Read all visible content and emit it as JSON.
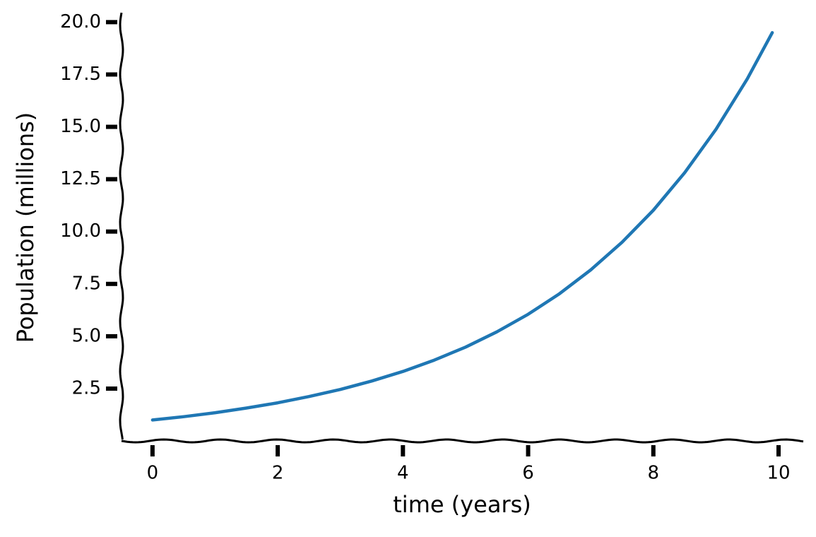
{
  "chart_data": {
    "type": "line",
    "x_label": "time (years)",
    "y_label": "Population (millions)",
    "x": [
      0,
      0.5,
      1,
      1.5,
      2,
      2.5,
      3,
      3.5,
      4,
      4.5,
      5,
      5.5,
      6,
      6.5,
      7,
      7.5,
      8,
      8.5,
      9,
      9.5,
      9.9
    ],
    "series": [
      {
        "name": "population",
        "color": "#1f77b4",
        "values": [
          1.0,
          1.16,
          1.35,
          1.57,
          1.82,
          2.12,
          2.46,
          2.86,
          3.32,
          3.86,
          4.48,
          5.21,
          6.05,
          7.03,
          8.17,
          9.49,
          11.02,
          12.81,
          14.88,
          17.29,
          19.5
        ]
      }
    ],
    "xlim": [
      -0.495,
      10.395
    ],
    "ylim": [
      0.07,
      20.45
    ],
    "xticks": [
      0,
      2,
      4,
      6,
      8,
      10
    ],
    "yticks": [
      {
        "value": 2.5,
        "label": "2.5"
      },
      {
        "value": 5,
        "label": "5.0"
      },
      {
        "value": 7.5,
        "label": "7.5"
      },
      {
        "value": 10,
        "label": "10.0"
      },
      {
        "value": 12.5,
        "label": "12.5"
      },
      {
        "value": 15,
        "label": "15.0"
      },
      {
        "value": 17.5,
        "label": "17.5"
      },
      {
        "value": 20,
        "label": "20.0"
      }
    ]
  }
}
